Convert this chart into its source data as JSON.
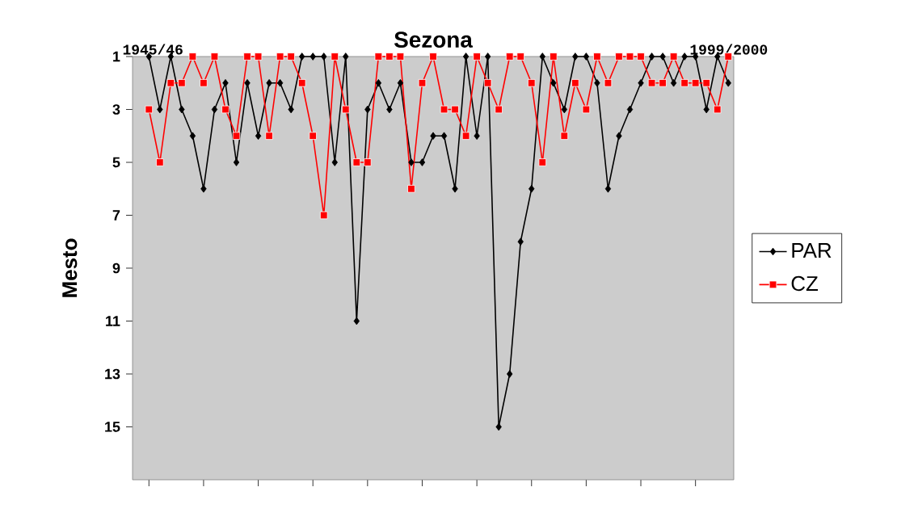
{
  "chart_data": {
    "type": "line",
    "title": "Sezona",
    "ylabel": "Mesto",
    "categories": [
      null,
      null,
      null,
      null,
      null,
      null,
      null,
      null,
      null,
      null,
      null,
      null,
      null,
      null,
      null,
      null,
      null,
      null,
      null,
      null,
      null,
      null,
      null,
      null,
      null,
      null,
      null,
      null,
      null,
      null,
      null,
      null,
      null,
      null,
      null,
      null,
      null,
      null,
      null,
      null,
      null,
      null,
      null,
      null,
      null,
      null,
      null,
      null,
      null,
      null,
      null,
      null,
      null,
      null
    ],
    "ylim": [
      17,
      1
    ],
    "yticks": [
      1,
      3,
      5,
      7,
      9,
      11,
      13,
      15
    ],
    "grid": false,
    "legend": "right",
    "line_style": "solid",
    "annotations": [
      "1945/46",
      "1999/2000"
    ],
    "series": [
      {
        "name": "PAR",
        "color": "#000000",
        "marker": "diamond",
        "values": [
          1,
          3,
          1,
          3,
          4,
          6,
          3,
          2,
          5,
          2,
          4,
          2,
          2,
          3,
          1,
          1,
          1,
          5,
          1,
          11,
          3,
          2,
          3,
          2,
          5,
          5,
          4,
          4,
          6,
          1,
          4,
          1,
          15,
          13,
          8,
          6,
          1,
          2,
          3,
          1,
          1,
          2,
          6,
          4,
          3,
          2,
          1,
          1,
          2,
          1,
          1,
          3,
          1,
          2
        ]
      },
      {
        "name": "CZ",
        "color": "#ff0000",
        "marker": "square",
        "values": [
          3,
          5,
          2,
          2,
          1,
          2,
          1,
          3,
          4,
          1,
          1,
          4,
          1,
          1,
          2,
          4,
          7,
          1,
          3,
          5,
          5,
          1,
          1,
          1,
          6,
          2,
          1,
          3,
          3,
          4,
          1,
          2,
          3,
          1,
          1,
          2,
          5,
          1,
          4,
          2,
          3,
          1,
          2,
          1,
          1,
          1,
          2,
          2,
          1,
          2,
          2,
          2,
          3,
          1
        ]
      }
    ]
  }
}
